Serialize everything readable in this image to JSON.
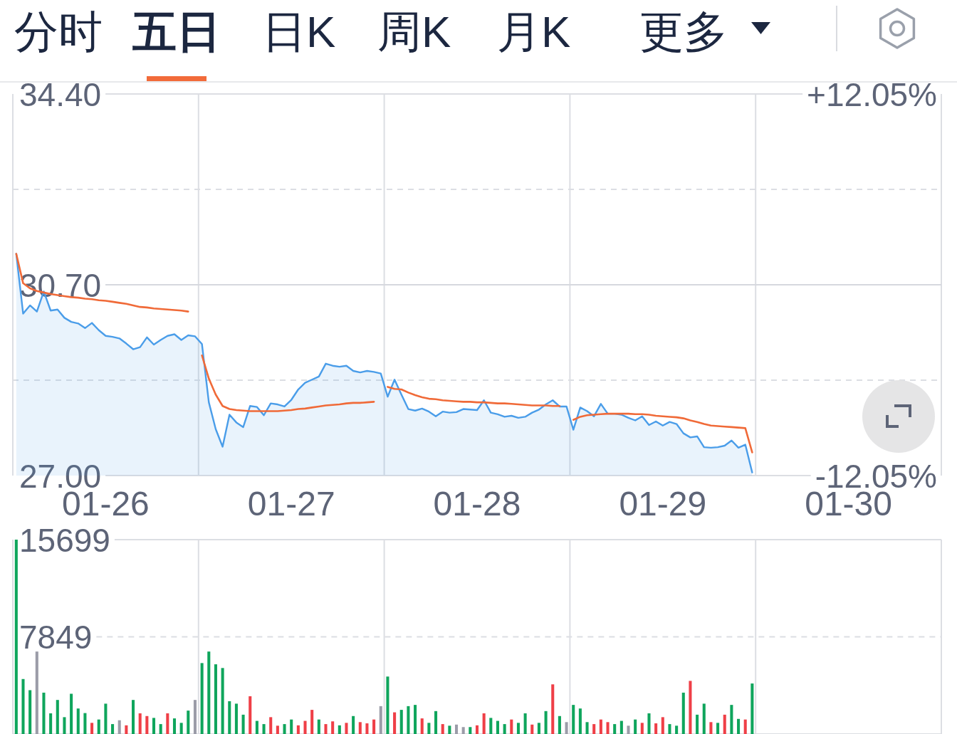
{
  "chart_data": [
    {
      "type": "line",
      "title": "五日",
      "annotations": [
        "分时",
        "日K",
        "周K",
        "月K",
        "更多"
      ],
      "categories": [
        null,
        null,
        null,
        null,
        null,
        null,
        null,
        null,
        null,
        null,
        null,
        null,
        null,
        "01-26",
        null,
        null,
        null,
        null,
        null,
        null,
        null,
        null,
        null,
        null,
        null,
        null,
        null,
        null,
        null,
        null,
        null,
        null,
        null,
        null,
        null,
        null,
        null,
        null,
        null,
        null,
        "01-27",
        null,
        null,
        null,
        null,
        null,
        null,
        null,
        null,
        null,
        null,
        null,
        null,
        null,
        null,
        null,
        null,
        null,
        null,
        null,
        null,
        null,
        null,
        null,
        null,
        null,
        null,
        "01-28",
        null,
        null,
        null,
        null,
        null,
        null,
        null,
        null,
        null,
        null,
        null,
        null,
        null,
        null,
        null,
        null,
        null,
        null,
        null,
        null,
        null,
        null,
        null,
        null,
        null,
        null,
        "01-29",
        null,
        null,
        null,
        null,
        null,
        null,
        null,
        null,
        null,
        null,
        null,
        null,
        null,
        null,
        null,
        null,
        null,
        null,
        null,
        null,
        null,
        null,
        null,
        null,
        null,
        null,
        "01-30",
        null,
        null,
        null,
        null,
        null,
        null,
        null,
        null,
        null,
        null,
        null,
        null,
        null
      ],
      "ylim": [
        27.0,
        34.4
      ],
      "yticks": [
        {
          "value": 34.4,
          "label": "34.40"
        },
        {
          "value": 32.55,
          "label": null
        },
        {
          "value": 30.7,
          "label": "30.70"
        },
        {
          "value": 28.85,
          "label": null
        },
        {
          "value": 27,
          "label": "27.00"
        }
      ],
      "y2lim": [
        -12.05,
        12.05
      ],
      "y2ticks": [
        {
          "value": 12.05,
          "label": "+12.05%"
        },
        {
          "value": -12.05,
          "label": "-12.05%"
        }
      ],
      "grid": true,
      "ref_lines": [
        {
          "axis": "y",
          "value": 30.7,
          "color": "#d6d8de",
          "line_style": "solid"
        }
      ],
      "series": [
        {
          "type": "area",
          "color": "#4a9de9",
          "values": [
            31.3,
            30.14,
            30.3,
            30.18,
            30.57,
            30.2,
            30.22,
            30.06,
            29.98,
            29.95,
            29.86,
            29.96,
            29.82,
            29.71,
            29.69,
            29.66,
            29.56,
            29.45,
            29.49,
            29.68,
            29.54,
            29.63,
            29.71,
            29.74,
            29.63,
            29.72,
            29.7,
            29.55,
            28.42,
            27.9,
            27.56,
            28.18,
            28.03,
            27.94,
            28.35,
            28.33,
            28.17,
            28.4,
            28.38,
            28.34,
            28.47,
            28.67,
            28.8,
            28.86,
            28.92,
            29.17,
            29.13,
            29.11,
            29.13,
            29.03,
            29.0,
            29.03,
            29.01,
            28.98,
            28.53,
            28.86,
            28.57,
            28.29,
            28.26,
            28.3,
            28.24,
            28.15,
            28.24,
            28.22,
            28.23,
            28.29,
            28.28,
            28.27,
            28.46,
            28.22,
            28.19,
            28.14,
            28.16,
            28.12,
            28.14,
            28.22,
            28.28,
            28.38,
            28.46,
            28.34,
            28.34,
            27.89,
            28.32,
            28.25,
            28.15,
            28.39,
            28.2,
            28.2,
            28.18,
            28.12,
            28.07,
            28.15,
            27.98,
            28.05,
            27.97,
            28.04,
            28.0,
            27.82,
            27.74,
            27.76,
            27.55,
            27.54,
            27.55,
            27.58,
            27.68,
            27.54,
            27.6,
            27.06,
            null,
            null,
            null,
            null,
            null,
            null,
            null,
            null,
            null,
            null,
            null,
            null,
            null,
            null,
            null,
            null,
            null,
            null,
            null,
            null,
            null,
            null,
            null,
            null,
            null,
            null,
            null
          ]
        },
        {
          "type": "line",
          "color": "#f06a38",
          "values": [
            31.3,
            30.73,
            30.63,
            30.58,
            30.55,
            30.52,
            30.5,
            30.48,
            30.46,
            30.45,
            30.43,
            30.42,
            30.4,
            30.39,
            30.37,
            30.35,
            30.33,
            30.3,
            30.27,
            30.26,
            30.24,
            30.23,
            30.22,
            30.21,
            30.2,
            30.18,
            null,
            29.33,
            28.88,
            28.57,
            28.35,
            28.29,
            28.27,
            28.26,
            28.25,
            28.25,
            28.25,
            28.25,
            28.25,
            28.26,
            28.27,
            28.29,
            28.3,
            28.32,
            28.34,
            28.36,
            28.37,
            28.38,
            28.4,
            28.41,
            28.41,
            28.42,
            28.43,
            null,
            28.72,
            28.68,
            28.67,
            28.61,
            28.56,
            28.52,
            28.49,
            28.48,
            28.46,
            28.45,
            28.44,
            28.43,
            28.43,
            28.42,
            28.42,
            28.41,
            28.4,
            28.4,
            28.39,
            28.38,
            28.37,
            28.36,
            28.36,
            28.36,
            28.35,
            28.35,
            null,
            28.08,
            28.14,
            28.17,
            28.18,
            28.19,
            28.2,
            28.2,
            28.2,
            28.2,
            28.19,
            28.19,
            28.18,
            28.16,
            28.15,
            28.14,
            28.13,
            28.11,
            28.07,
            28.04,
            28.0,
            27.97,
            27.96,
            27.95,
            27.94,
            27.93,
            27.92,
            27.45,
            null,
            null,
            null,
            null,
            null,
            null,
            null,
            null,
            null,
            null,
            null,
            null,
            null,
            null,
            null,
            null,
            null,
            null,
            null,
            null,
            null,
            null,
            null,
            null,
            null,
            null,
            null
          ]
        }
      ]
    },
    {
      "type": "bar",
      "categories": [
        null,
        null,
        null,
        null,
        null,
        null,
        null,
        null,
        null,
        null,
        null,
        null,
        null,
        null,
        null,
        null,
        null,
        null,
        null,
        null,
        null,
        null,
        null,
        null,
        null,
        null,
        null,
        null,
        null,
        null,
        null,
        null,
        null,
        null,
        null,
        null,
        null,
        null,
        null,
        null,
        null,
        null,
        null,
        null,
        null,
        null,
        null,
        null,
        null,
        null,
        null,
        null,
        null,
        null,
        null,
        null,
        null,
        null,
        null,
        null,
        null,
        null,
        null,
        null,
        null,
        null,
        null,
        null,
        null,
        null,
        null,
        null,
        null,
        null,
        null,
        null,
        null,
        null,
        null,
        null,
        null,
        null,
        null,
        null,
        null,
        null,
        null,
        null,
        null,
        null,
        null,
        null,
        null,
        null,
        null,
        null,
        null,
        null,
        null,
        null,
        null,
        null,
        null,
        null,
        null,
        null,
        null,
        null,
        null,
        null,
        null,
        null,
        null,
        null,
        null,
        null,
        null,
        null,
        null,
        null,
        null,
        null,
        null,
        null,
        null,
        null,
        null,
        null,
        null,
        null,
        null,
        null,
        null,
        null,
        null
      ],
      "ylim": [
        0,
        15699
      ],
      "yticks": [
        15699,
        7849
      ],
      "grid": "x",
      "ref_lines": [
        {
          "axis": "y",
          "value": 7849,
          "color": "#dcdee3",
          "line_style": "dashed"
        }
      ],
      "values": [
        15699,
        4440,
        3540,
        6660,
        3340,
        1670,
        2750,
        1360,
        3250,
        2060,
        1690,
        900,
        1170,
        2450,
        800,
        1110,
        700,
        2750,
        1670,
        1450,
        1300,
        800,
        1670,
        1260,
        900,
        1890,
        2750,
        5730,
        6660,
        5630,
        5330,
        2650,
        2450,
        1560,
        3050,
        1060,
        800,
        1360,
        670,
        800,
        1170,
        700,
        1060,
        1950,
        1170,
        800,
        1020,
        700,
        900,
        1450,
        960,
        860,
        1170,
        2250,
        4640,
        1750,
        1950,
        2250,
        2350,
        1260,
        900,
        1850,
        800,
        670,
        760,
        560,
        560,
        700,
        1670,
        1300,
        1060,
        800,
        1170,
        900,
        1670,
        760,
        900,
        1850,
        4010,
        1450,
        960,
        2350,
        2060,
        960,
        800,
        1170,
        960,
        800,
        1060,
        670,
        1170,
        900,
        1670,
        860,
        1360,
        800,
        670,
        3340,
        4290,
        1560,
        2450,
        960,
        900,
        1560,
        2350,
        1220,
        1170,
        4080,
        null,
        null,
        null,
        null,
        null,
        null,
        null,
        null,
        null,
        null,
        null,
        null,
        null,
        null,
        null,
        null,
        null,
        null,
        null,
        null,
        null,
        null,
        null,
        null,
        null,
        null,
        null
      ],
      "colors": [
        "#0fa55c",
        "#0fa55c",
        "#0fa55c",
        "#9b9ca8",
        "#0fa55c",
        "#0fa55c",
        "#0fa55c",
        "#0fa55c",
        "#0fa55c",
        "#0fa55c",
        "#0fa55c",
        "#ef3f47",
        "#0fa55c",
        "#0fa55c",
        "#0fa55c",
        "#9b9ca8",
        "#ef3f47",
        "#0fa55c",
        "#ef3f47",
        "#ef3f47",
        "#0fa55c",
        "#0fa55c",
        "#ef3f47",
        "#0fa55c",
        "#0fa55c",
        "#0fa55c",
        "#9b9ca8",
        "#0fa55c",
        "#0fa55c",
        "#0fa55c",
        "#0fa55c",
        "#0fa55c",
        "#0fa55c",
        "#0fa55c",
        "#ef3f47",
        "#0fa55c",
        "#0fa55c",
        "#ef3f47",
        "#ef3f47",
        "#0fa55c",
        "#0fa55c",
        "#ef3f47",
        "#ef3f47",
        "#ef3f47",
        "#0fa55c",
        "#ef3f47",
        "#ef3f47",
        "#0fa55c",
        "#ef3f47",
        "#0fa55c",
        "#ef3f47",
        "#ef3f47",
        "#ef3f47",
        "#9b9ca8",
        "#0fa55c",
        "#ef3f47",
        "#0fa55c",
        "#0fa55c",
        "#0fa55c",
        "#ef3f47",
        "#0fa55c",
        "#0fa55c",
        "#ef3f47",
        "#0fa55c",
        "#9b9ca8",
        "#9b9ca8",
        "#0fa55c",
        "#ef3f47",
        "#ef3f47",
        "#0fa55c",
        "#0fa55c",
        "#0fa55c",
        "#ef3f47",
        "#0fa55c",
        "#0fa55c",
        "#ef3f47",
        "#0fa55c",
        "#0fa55c",
        "#ef3f47",
        "#0fa55c",
        "#9b9ca8",
        "#0fa55c",
        "#0fa55c",
        "#0fa55c",
        "#ef3f47",
        "#ef3f47",
        "#ef3f47",
        "#0fa55c",
        "#0fa55c",
        "#9b9ca8",
        "#0fa55c",
        "#ef3f47",
        "#0fa55c",
        "#ef3f47",
        "#ef3f47",
        "#0fa55c",
        "#0fa55c",
        "#0fa55c",
        "#ef3f47",
        "#0fa55c",
        "#0fa55c",
        "#ef3f47",
        "#0fa55c",
        "#ef3f47",
        "#0fa55c",
        "#0fa55c",
        "#ef3f47",
        "#0fa55c",
        null,
        null,
        null,
        null,
        null,
        null,
        null,
        null,
        null,
        null,
        null,
        null,
        null,
        null,
        null,
        null,
        null,
        null,
        null,
        null,
        null,
        null,
        null,
        null,
        null,
        null,
        null
      ]
    }
  ]
}
